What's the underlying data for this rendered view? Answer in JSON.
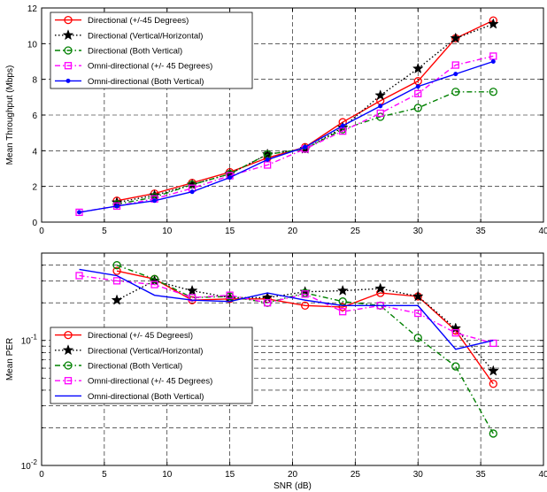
{
  "chart_data": [
    {
      "type": "line",
      "title": "",
      "xlabel": "",
      "ylabel": "Mean Throughput (Mbps)",
      "xlim": [
        0,
        40
      ],
      "ylim": [
        0,
        12
      ],
      "xticks": [
        "0",
        "5",
        "10",
        "15",
        "20",
        "25",
        "30",
        "35",
        "40"
      ],
      "yticks": [
        "0",
        "2",
        "4",
        "6",
        "8",
        "10",
        "12"
      ],
      "grid": true,
      "legend_position": "top-left",
      "series": [
        {
          "name": "Directional (+/-45 Degrees)",
          "color": "#ff0000",
          "marker": "circle",
          "dash": "solid",
          "x": [
            6,
            9,
            12,
            15,
            18,
            21,
            24,
            27,
            30,
            33,
            36
          ],
          "y": [
            1.2,
            1.6,
            2.2,
            2.8,
            3.6,
            4.2,
            5.6,
            6.8,
            7.9,
            10.3,
            11.3
          ]
        },
        {
          "name": "Directional (Vertical/Horizontal)",
          "color": "#000000",
          "marker": "star",
          "dash": "dotted",
          "x": [
            6,
            9,
            12,
            15,
            18,
            21,
            24,
            27,
            30,
            33,
            36
          ],
          "y": [
            1.1,
            1.5,
            2.1,
            2.7,
            3.8,
            4.1,
            5.3,
            7.1,
            8.6,
            10.3,
            11.1
          ]
        },
        {
          "name": "Directional (Both Vertical)",
          "color": "#008000",
          "marker": "circle",
          "dash": "dashdot",
          "x": [
            6,
            9,
            12,
            15,
            18,
            21,
            24,
            27,
            30,
            33,
            36
          ],
          "y": [
            1.0,
            1.4,
            2.1,
            2.7,
            3.8,
            4.1,
            5.2,
            5.9,
            6.4,
            7.3,
            7.3
          ]
        },
        {
          "name": "Omni-directional (+/- 45 Degrees)",
          "color": "#ff00ff",
          "marker": "square",
          "dash": "dashdot",
          "x": [
            3,
            6,
            9,
            12,
            15,
            18,
            21,
            24,
            27,
            30,
            33,
            36
          ],
          "y": [
            0.55,
            0.9,
            1.3,
            1.9,
            2.6,
            3.2,
            4.1,
            5.1,
            6.1,
            7.2,
            8.8,
            9.3
          ]
        },
        {
          "name": "Omni-directional (Both Vertical)",
          "color": "#0000ff",
          "marker": "dot",
          "dash": "solid",
          "x": [
            3,
            6,
            9,
            12,
            15,
            18,
            21,
            24,
            27,
            30,
            33,
            36
          ],
          "y": [
            0.55,
            0.9,
            1.2,
            1.7,
            2.5,
            3.5,
            4.2,
            5.4,
            6.5,
            7.6,
            8.3,
            9.0
          ]
        }
      ]
    },
    {
      "type": "line",
      "title": "",
      "xlabel": "SNR (dB)",
      "ylabel": "Mean PER",
      "xlim": [
        0,
        40
      ],
      "ylim": [
        0.01,
        0.5
      ],
      "yscale": "log",
      "xticks": [
        "0",
        "5",
        "10",
        "15",
        "20",
        "25",
        "30",
        "35",
        "40"
      ],
      "yticks": [
        {
          "value": 0.01,
          "base": "10",
          "exp": "-2"
        },
        {
          "value": 0.1,
          "base": "10",
          "exp": "-1"
        }
      ],
      "grid": true,
      "legend_position": "bottom-left",
      "series": [
        {
          "name": "Directional (+/- 45 Degreesl)",
          "color": "#ff0000",
          "marker": "circle",
          "dash": "solid",
          "x": [
            6,
            9,
            12,
            15,
            18,
            21,
            24,
            27,
            30,
            33,
            36
          ],
          "y": [
            0.36,
            0.31,
            0.21,
            0.215,
            0.215,
            0.19,
            0.185,
            0.24,
            0.225,
            0.12,
            0.045
          ]
        },
        {
          "name": "Directional (Vertical/Horizontal)",
          "color": "#000000",
          "marker": "star",
          "dash": "dotted",
          "x": [
            6,
            9,
            12,
            15,
            18,
            21,
            24,
            27,
            30,
            33,
            36
          ],
          "y": [
            0.21,
            0.3,
            0.25,
            0.22,
            0.22,
            0.245,
            0.25,
            0.26,
            0.225,
            0.125,
            0.057
          ]
        },
        {
          "name": "Directional (Both Vertical)",
          "color": "#008000",
          "marker": "circle",
          "dash": "dashdot",
          "x": [
            6,
            9,
            12,
            15,
            18,
            21,
            24,
            27,
            30,
            33,
            36
          ],
          "y": [
            0.4,
            0.31,
            0.22,
            0.225,
            0.2,
            0.24,
            0.205,
            0.19,
            0.105,
            0.062,
            0.018
          ]
        },
        {
          "name": "Omni-directional (+/- 45 Degrees)",
          "color": "#ff00ff",
          "marker": "square",
          "dash": "dashdot",
          "x": [
            3,
            6,
            9,
            12,
            15,
            18,
            21,
            24,
            27,
            30,
            33,
            36
          ],
          "y": [
            0.33,
            0.3,
            0.28,
            0.22,
            0.23,
            0.2,
            0.235,
            0.17,
            0.19,
            0.165,
            0.115,
            0.095
          ]
        },
        {
          "name": "Omni-directional (Both Vertical)",
          "color": "#0000ff",
          "marker": "none",
          "dash": "solid",
          "x": [
            3,
            6,
            9,
            12,
            15,
            18,
            21,
            24,
            27,
            30,
            33,
            36
          ],
          "y": [
            0.37,
            0.33,
            0.23,
            0.21,
            0.205,
            0.24,
            0.21,
            0.19,
            0.19,
            0.19,
            0.085,
            0.1
          ]
        }
      ]
    }
  ]
}
